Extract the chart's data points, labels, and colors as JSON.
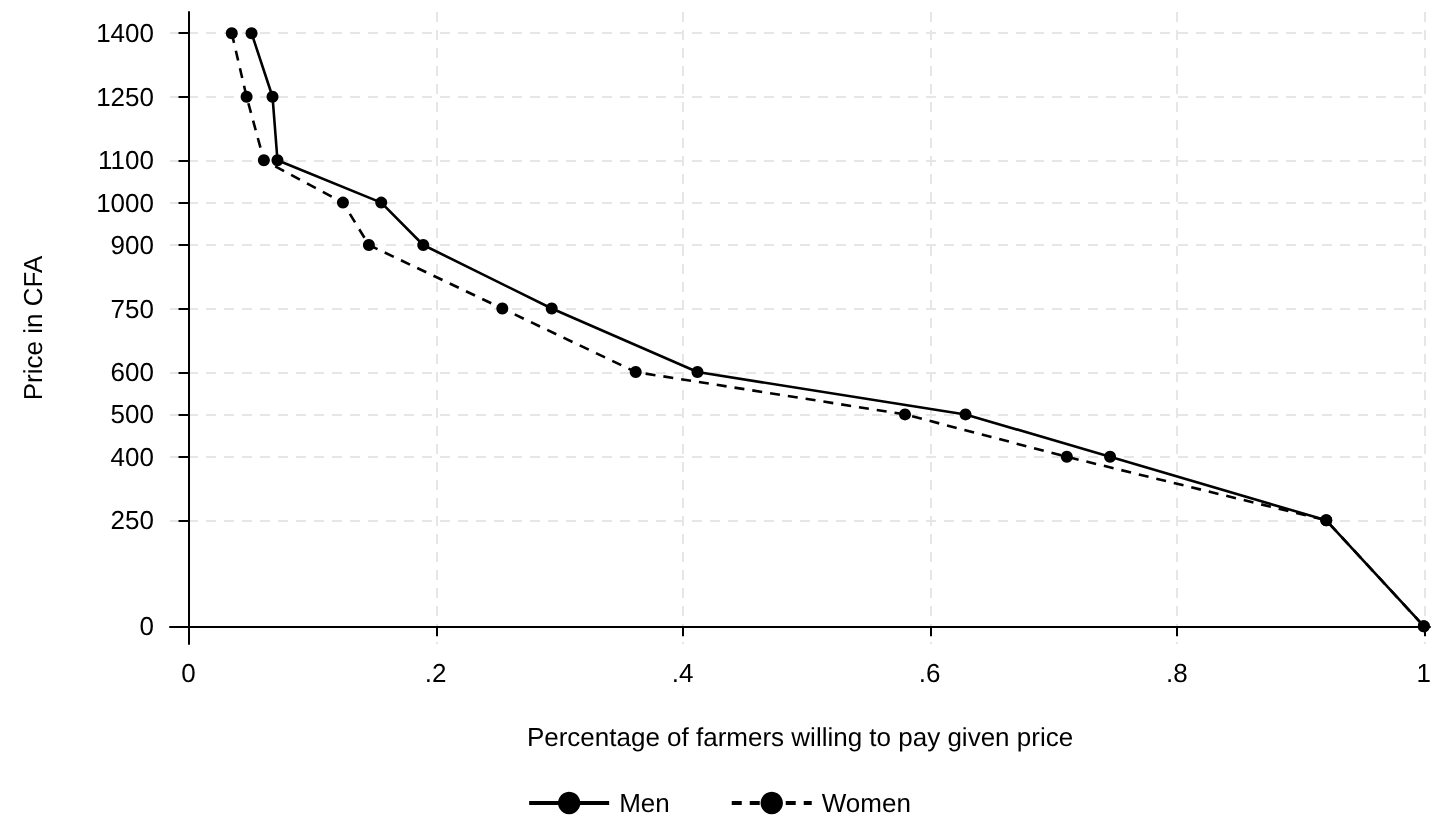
{
  "chart_data": {
    "type": "line",
    "xlabel": "Percentage of farmers willing to pay given price",
    "ylabel": "Price in CFA",
    "series": [
      {
        "name": "Men",
        "color": "#000000",
        "line_style": "solid",
        "x": [
          0.051,
          0.068,
          0.072,
          0.156,
          0.19,
          0.294,
          0.412,
          0.629,
          0.746,
          0.921,
          1
        ],
        "values": [
          1400,
          1250,
          1100,
          1000,
          900,
          750,
          600,
          500,
          400,
          250,
          0
        ]
      },
      {
        "name": "Women",
        "color": "#000000",
        "line_style": "dashed",
        "x": [
          0.035,
          0.047,
          0.061,
          0.125,
          0.146,
          0.254,
          0.362,
          0.58,
          0.711,
          0.921,
          1
        ],
        "values": [
          1400,
          1250,
          1100,
          1000,
          900,
          750,
          600,
          500,
          400,
          250,
          0
        ]
      }
    ],
    "xlim": [
      -0.015,
      1.005
    ],
    "xticks": [
      0,
      {
        "value": 0.2,
        "label": ".2"
      },
      {
        "value": 0.4,
        "label": ".4"
      },
      {
        "value": 0.6,
        "label": ".6"
      },
      {
        "value": 0.8,
        "label": ".8"
      },
      1
    ],
    "ylim": [
      -42,
      1450
    ],
    "yticks": [
      0,
      250,
      400,
      500,
      600,
      750,
      900,
      1000,
      1100,
      1250,
      1400
    ],
    "grid": true,
    "legend": "bottom",
    "marker": "circle"
  }
}
